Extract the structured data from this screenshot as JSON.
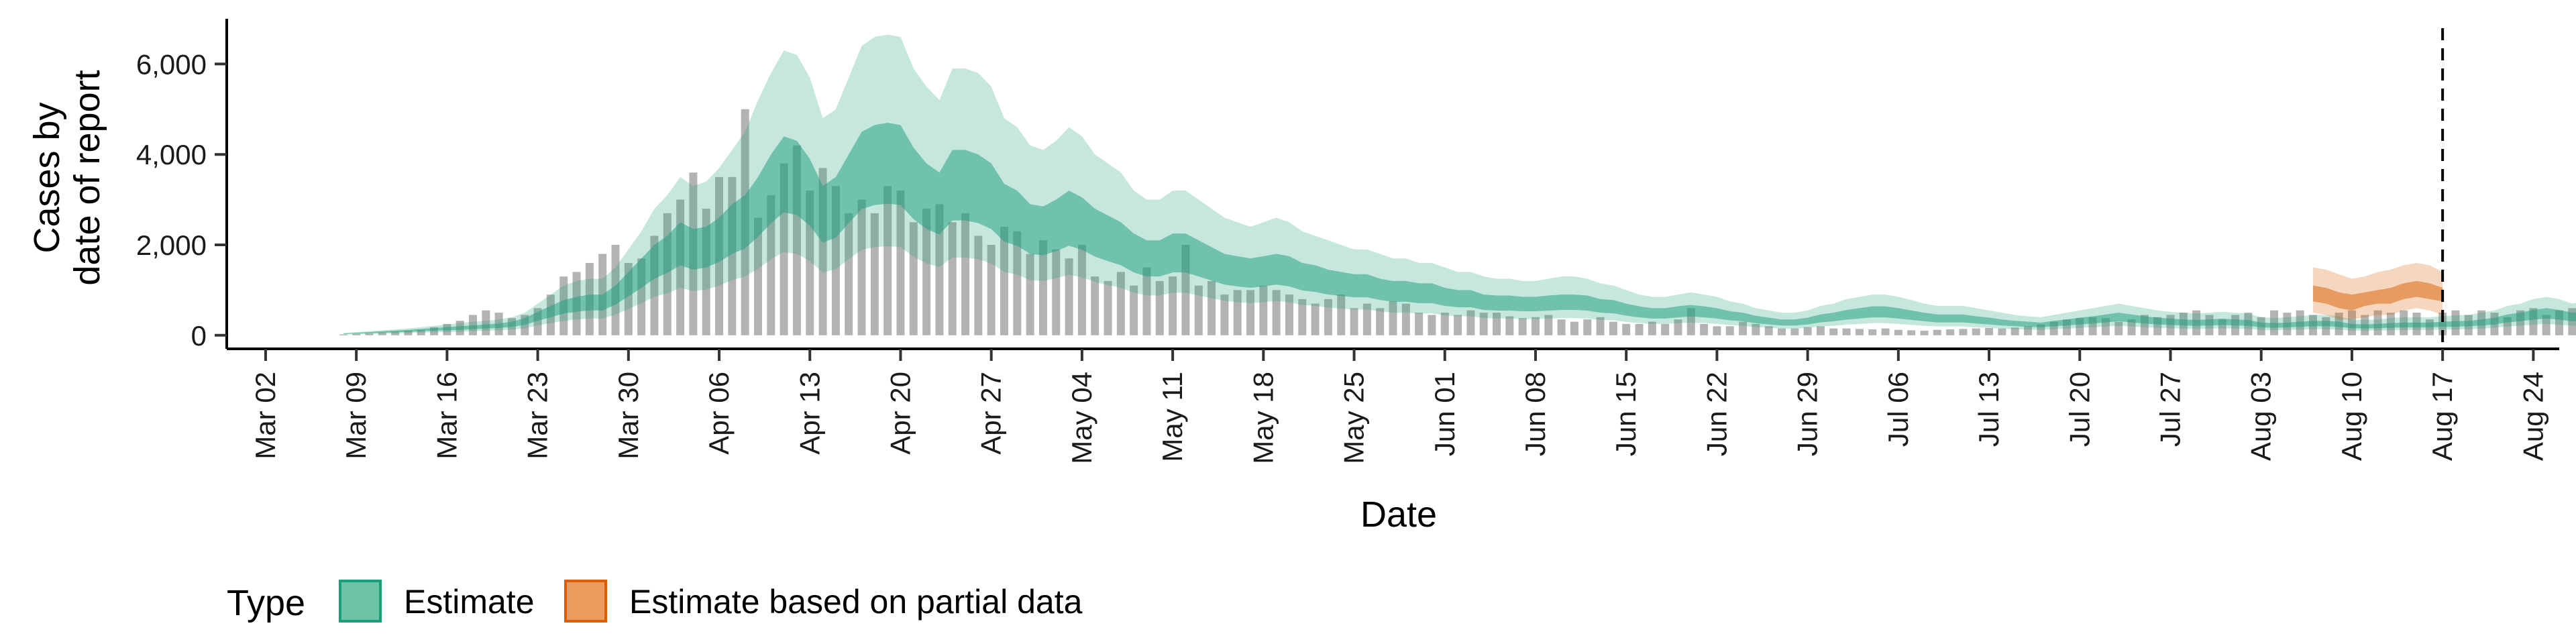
{
  "chart_data": {
    "type": "area",
    "title": "",
    "xlabel": "Date",
    "ylabel_lines": [
      "Cases by",
      "date of report"
    ],
    "x_tick_labels": [
      "Mar 02",
      "Mar 09",
      "Mar 16",
      "Mar 23",
      "Mar 30",
      "Apr 06",
      "Apr 13",
      "Apr 20",
      "Apr 27",
      "May 04",
      "May 11",
      "May 18",
      "May 25",
      "Jun 01",
      "Jun 08",
      "Jun 15",
      "Jun 22",
      "Jun 29",
      "Jul 06",
      "Jul 13",
      "Jul 20",
      "Jul 27",
      "Aug 03",
      "Aug 10",
      "Aug 17",
      "Aug 24"
    ],
    "x_tick_dates": [
      "2020-03-02",
      "2020-03-09",
      "2020-03-16",
      "2020-03-23",
      "2020-03-30",
      "2020-04-06",
      "2020-04-13",
      "2020-04-20",
      "2020-04-27",
      "2020-05-04",
      "2020-05-11",
      "2020-05-18",
      "2020-05-25",
      "2020-06-01",
      "2020-06-08",
      "2020-06-15",
      "2020-06-22",
      "2020-06-29",
      "2020-07-06",
      "2020-07-13",
      "2020-07-20",
      "2020-07-27",
      "2020-08-03",
      "2020-08-10",
      "2020-08-17",
      "2020-08-24"
    ],
    "y_ticks": [
      0,
      2000,
      4000,
      6000
    ],
    "y_tick_labels": [
      "0",
      "2,000",
      "4,000",
      "6,000"
    ],
    "xlim": [
      "2020-02-28",
      "2020-08-26"
    ],
    "ylim": [
      -300,
      7000
    ],
    "vline_date": "2020-08-17",
    "partial_from": "2020-08-07",
    "observed": {
      "start": "2020-03-08",
      "end": "2020-08-17",
      "values": [
        20,
        30,
        40,
        60,
        80,
        100,
        120,
        180,
        250,
        320,
        450,
        550,
        500,
        380,
        450,
        600,
        900,
        1300,
        1400,
        1600,
        1800,
        2000,
        1600,
        1700,
        2200,
        2700,
        3000,
        3600,
        2800,
        3500,
        3500,
        5000,
        2600,
        3100,
        3800,
        4200,
        3200,
        3700,
        3300,
        2700,
        3000,
        2700,
        3300,
        3200,
        2500,
        2800,
        2900,
        2500,
        2700,
        2200,
        2000,
        2400,
        2300,
        1800,
        2100,
        1900,
        1700,
        2000,
        1300,
        1200,
        1400,
        1100,
        1500,
        1200,
        1300,
        2000,
        1100,
        1200,
        900,
        1000,
        1000,
        1100,
        1000,
        900,
        800,
        700,
        800,
        900,
        600,
        700,
        600,
        750,
        700,
        500,
        450,
        500,
        450,
        550,
        500,
        500,
        420,
        380,
        400,
        450,
        350,
        300,
        350,
        400,
        300,
        250,
        250,
        300,
        250,
        350,
        600,
        250,
        200,
        200,
        300,
        250,
        200,
        150,
        150,
        180,
        200,
        150,
        150,
        140,
        130,
        150,
        120,
        110,
        100,
        120,
        130,
        140,
        150,
        160,
        150,
        170,
        200,
        240,
        300,
        350,
        380,
        400,
        380,
        300,
        350,
        450,
        400,
        450,
        500,
        550,
        450,
        350,
        450,
        500,
        400,
        550,
        500,
        550,
        450,
        400,
        500,
        550,
        450,
        550,
        500,
        550,
        500,
        350,
        500,
        550,
        450,
        550,
        500,
        400,
        550,
        600,
        450,
        550,
        600,
        550,
        600,
        650,
        500,
        650,
        700,
        600,
        650,
        700,
        800,
        700,
        750,
        650,
        800,
        700,
        600,
        700,
        650,
        550,
        500
      ]
    },
    "series": [
      {
        "name": "Estimate",
        "color": "#1b9e77",
        "start": "2020-03-08",
        "end": "2020-08-06",
        "outer_upper": [
          50,
          70,
          90,
          110,
          130,
          150,
          180,
          210,
          240,
          270,
          300,
          320,
          350,
          400,
          500,
          700,
          900,
          1100,
          1200,
          1250,
          1250,
          1500,
          1900,
          2300,
          2800,
          3100,
          3500,
          3300,
          3400,
          3700,
          4100,
          4500,
          5200,
          5800,
          6300,
          6200,
          5700,
          4800,
          5000,
          5700,
          6400,
          6600,
          6650,
          6600,
          5900,
          5500,
          5200,
          5900,
          5900,
          5800,
          5500,
          4800,
          4600,
          4200,
          4100,
          4300,
          4600,
          4400,
          4000,
          3800,
          3600,
          3200,
          3000,
          3000,
          3200,
          3200,
          3000,
          2800,
          2600,
          2500,
          2400,
          2500,
          2600,
          2500,
          2300,
          2200,
          2100,
          2000,
          1900,
          1900,
          1800,
          1700,
          1700,
          1600,
          1600,
          1500,
          1400,
          1400,
          1300,
          1250,
          1250,
          1200,
          1200,
          1250,
          1300,
          1300,
          1250,
          1150,
          1100,
          1000,
          900,
          850,
          850,
          900,
          950,
          900,
          850,
          750,
          700,
          600,
          550,
          500,
          500,
          550,
          650,
          700,
          800,
          850,
          900,
          900,
          850,
          780,
          700,
          650,
          650,
          650,
          600,
          550,
          500,
          450,
          420,
          400,
          450,
          500,
          550,
          600,
          650,
          700,
          650,
          600,
          550,
          520,
          500,
          480,
          500,
          520,
          500,
          480,
          400,
          380,
          400,
          420,
          450,
          450,
          420,
          350,
          340,
          350,
          380,
          400,
          400,
          400,
          420,
          440,
          450,
          500,
          550,
          650,
          700,
          800,
          850,
          800,
          700,
          750,
          850,
          950,
          1000,
          1000,
          950,
          900,
          850,
          900,
          950,
          1000,
          1100,
          1100,
          1050,
          950,
          900,
          850,
          950,
          1050,
          1100,
          1050,
          1000,
          900,
          850,
          950,
          1000,
          1100,
          1100,
          1050,
          950,
          900,
          900,
          1050,
          1100,
          1050,
          950,
          900,
          950,
          1050,
          1100,
          1150,
          1100,
          1050,
          950,
          1000,
          1100,
          1200,
          1250,
          1300
        ],
        "inner_upper": [
          40,
          55,
          70,
          90,
          105,
          120,
          140,
          160,
          180,
          200,
          220,
          240,
          260,
          300,
          380,
          520,
          650,
          780,
          850,
          900,
          900,
          1100,
          1400,
          1700,
          2000,
          2200,
          2500,
          2350,
          2400,
          2600,
          2900,
          3100,
          3500,
          4000,
          4400,
          4300,
          3900,
          3300,
          3500,
          4000,
          4500,
          4650,
          4700,
          4650,
          4150,
          3800,
          3600,
          4100,
          4100,
          4000,
          3800,
          3350,
          3200,
          2900,
          2850,
          3000,
          3200,
          3050,
          2800,
          2650,
          2500,
          2250,
          2100,
          2100,
          2250,
          2250,
          2100,
          1950,
          1800,
          1750,
          1700,
          1750,
          1800,
          1750,
          1600,
          1550,
          1450,
          1400,
          1350,
          1350,
          1250,
          1200,
          1200,
          1150,
          1150,
          1050,
          1000,
          1000,
          900,
          880,
          880,
          850,
          850,
          880,
          900,
          900,
          880,
          800,
          780,
          700,
          640,
          600,
          600,
          640,
          670,
          640,
          600,
          530,
          500,
          430,
          390,
          350,
          350,
          390,
          460,
          500,
          560,
          600,
          640,
          640,
          600,
          550,
          500,
          460,
          460,
          460,
          420,
          390,
          350,
          320,
          300,
          280,
          320,
          350,
          390,
          420,
          460,
          500,
          460,
          420,
          390,
          370,
          350,
          340,
          350,
          370,
          350,
          340,
          280,
          270,
          280,
          300,
          320,
          320,
          300,
          250,
          240,
          250,
          270,
          280,
          280,
          280,
          300,
          310,
          320,
          350,
          390,
          460,
          500,
          560,
          600,
          560,
          500,
          530,
          600,
          670,
          700,
          700,
          670,
          640,
          600,
          640,
          670,
          700,
          780,
          780,
          740,
          670,
          640,
          600,
          670,
          740,
          780,
          740,
          700,
          640,
          600,
          670,
          700,
          780,
          780,
          740,
          670,
          640,
          640,
          740,
          780,
          740,
          670,
          640,
          670,
          740,
          780,
          810,
          780,
          740,
          670,
          700,
          780,
          850,
          880,
          920
        ],
        "inner_lower": [
          30,
          35,
          45,
          55,
          65,
          75,
          90,
          100,
          110,
          120,
          135,
          150,
          160,
          185,
          230,
          320,
          400,
          480,
          520,
          550,
          550,
          680,
          860,
          1050,
          1250,
          1380,
          1550,
          1450,
          1500,
          1620,
          1800,
          1920,
          2180,
          2480,
          2720,
          2660,
          2420,
          2050,
          2160,
          2480,
          2790,
          2880,
          2910,
          2880,
          2570,
          2350,
          2230,
          2540,
          2540,
          2480,
          2350,
          2070,
          1980,
          1800,
          1770,
          1860,
          1980,
          1890,
          1740,
          1640,
          1550,
          1390,
          1300,
          1300,
          1390,
          1390,
          1300,
          1210,
          1120,
          1080,
          1050,
          1080,
          1120,
          1080,
          990,
          960,
          900,
          870,
          840,
          840,
          780,
          740,
          740,
          710,
          710,
          650,
          620,
          620,
          560,
          545,
          545,
          530,
          530,
          545,
          560,
          560,
          545,
          500,
          485,
          435,
          395,
          370,
          370,
          395,
          415,
          395,
          370,
          330,
          310,
          265,
          240,
          215,
          215,
          240,
          285,
          310,
          345,
          370,
          395,
          395,
          370,
          340,
          310,
          285,
          285,
          285,
          260,
          240,
          215,
          200,
          185,
          175,
          200,
          215,
          240,
          260,
          285,
          310,
          285,
          260,
          240,
          230,
          215,
          210,
          215,
          230,
          215,
          210,
          175,
          165,
          175,
          185,
          200,
          200,
          185,
          155,
          150,
          155,
          165,
          175,
          175,
          175,
          185,
          190,
          200,
          215,
          240,
          285,
          310,
          345,
          370,
          345,
          310,
          330,
          370,
          415,
          435,
          435,
          415,
          395,
          370,
          395,
          415,
          435,
          485,
          485,
          460,
          415,
          395,
          370,
          415,
          460,
          485,
          460,
          435,
          395,
          370,
          415,
          435,
          485,
          485,
          460,
          415,
          395,
          395,
          460,
          485,
          460,
          415,
          395,
          415,
          460,
          485,
          500,
          485,
          460,
          415,
          435,
          485,
          530,
          545,
          570
        ],
        "outer_lower": [
          20,
          25,
          30,
          35,
          40,
          50,
          60,
          65,
          70,
          80,
          90,
          100,
          110,
          125,
          155,
          215,
          270,
          320,
          350,
          370,
          370,
          460,
          580,
          710,
          850,
          930,
          1050,
          980,
          1010,
          1100,
          1220,
          1300,
          1470,
          1680,
          1840,
          1800,
          1640,
          1390,
          1460,
          1680,
          1890,
          1950,
          1970,
          1950,
          1740,
          1590,
          1510,
          1720,
          1720,
          1680,
          1590,
          1400,
          1340,
          1220,
          1200,
          1260,
          1340,
          1280,
          1180,
          1110,
          1050,
          940,
          880,
          880,
          940,
          940,
          880,
          820,
          760,
          730,
          710,
          730,
          760,
          730,
          670,
          650,
          610,
          590,
          570,
          570,
          530,
          500,
          500,
          480,
          480,
          440,
          420,
          420,
          380,
          370,
          370,
          360,
          360,
          370,
          380,
          380,
          370,
          340,
          330,
          295,
          270,
          250,
          250,
          270,
          280,
          270,
          250,
          225,
          210,
          180,
          165,
          145,
          145,
          165,
          195,
          210,
          235,
          250,
          270,
          270,
          250,
          230,
          210,
          195,
          195,
          195,
          175,
          165,
          145,
          135,
          125,
          120,
          135,
          145,
          165,
          175,
          195,
          210,
          195,
          175,
          165,
          155,
          145,
          140,
          145,
          155,
          145,
          140,
          120,
          110,
          120,
          125,
          135,
          135,
          125,
          105,
          100,
          105,
          110,
          120,
          120,
          120,
          125,
          130,
          135,
          145,
          165,
          195,
          210,
          235,
          250,
          235,
          210,
          225,
          250,
          280,
          295,
          295,
          280,
          270,
          250,
          270,
          280,
          295,
          330,
          330,
          310,
          280,
          270,
          250,
          280,
          310,
          330,
          310,
          295,
          270,
          250,
          280,
          295,
          330,
          330,
          310,
          280,
          270,
          270,
          310,
          330,
          310,
          280,
          270,
          280,
          310,
          330,
          340,
          330,
          310,
          280,
          295,
          330,
          360,
          370,
          385
        ]
      },
      {
        "name": "Estimate based on partial data",
        "color": "#d95f02",
        "start": "2020-08-07",
        "end": "2020-08-17",
        "outer_upper": [
          1500,
          1450,
          1350,
          1250,
          1300,
          1400,
          1450,
          1550,
          1600,
          1550,
          1400
        ],
        "inner_upper": [
          1100,
          1050,
          950,
          900,
          950,
          1000,
          1050,
          1150,
          1200,
          1150,
          1050
        ],
        "inner_lower": [
          750,
          700,
          600,
          550,
          650,
          700,
          700,
          800,
          850,
          800,
          750
        ],
        "outer_lower": [
          500,
          450,
          350,
          350,
          400,
          450,
          450,
          550,
          600,
          550,
          450
        ]
      }
    ],
    "legend": {
      "title": "Type",
      "position": "bottom-left",
      "entries": [
        {
          "label": "Estimate",
          "fill": "#6cc2a5",
          "stroke": "#1b9e77"
        },
        {
          "label": "Estimate based on partial data",
          "fill": "#ec9c5e",
          "stroke": "#d95f02"
        }
      ]
    },
    "observed_color": "#b3b3b3"
  }
}
